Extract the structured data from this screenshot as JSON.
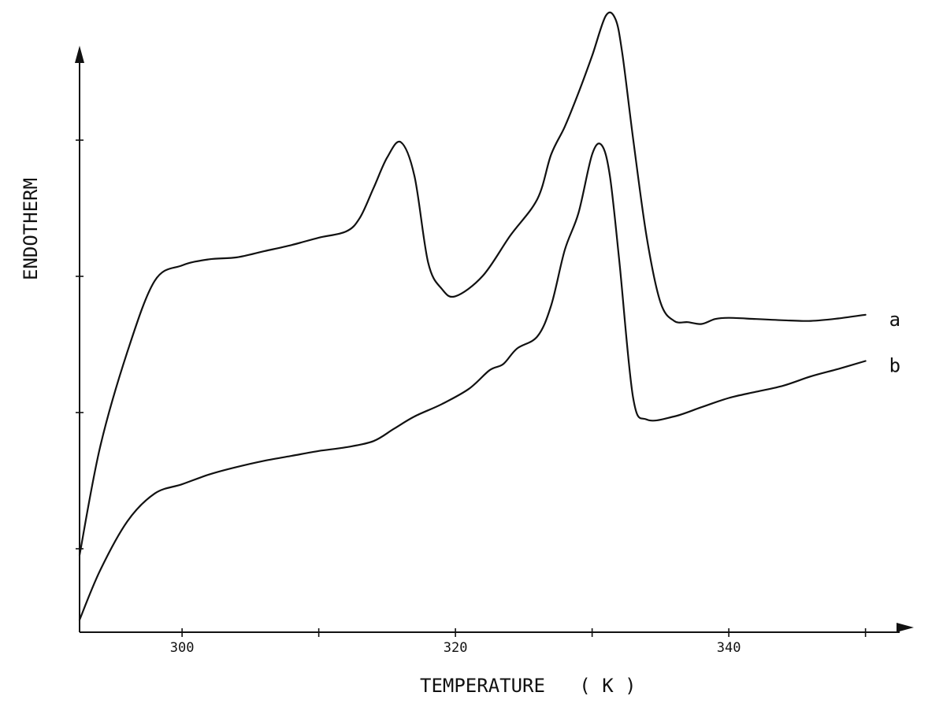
{
  "chart_data": {
    "type": "line",
    "title": "",
    "xlabel": "TEMPERATURE   ( K )",
    "ylabel": "ENDOTHERM",
    "xlim": [
      292.5,
      352.5
    ],
    "ylim": [
      0,
      1
    ],
    "grid": false,
    "y_ticks_labeled": false,
    "x_ticks": [
      300,
      310,
      320,
      330,
      340,
      350
    ],
    "x_tick_labels": [
      "300",
      "",
      "320",
      "",
      "340",
      ""
    ],
    "series": [
      {
        "name": "a",
        "x": [
          292.5,
          294,
          296,
          298,
          300,
          302,
          304,
          306,
          308,
          310,
          312,
          313,
          314,
          315,
          316,
          317,
          318,
          319,
          320,
          322,
          324,
          326,
          327,
          328,
          329,
          330,
          331,
          331.7,
          332.2,
          333,
          334,
          335,
          336,
          337,
          338,
          339,
          340,
          342,
          344,
          346,
          348,
          350
        ],
        "y": [
          0.125,
          0.3,
          0.455,
          0.57,
          0.595,
          0.605,
          0.608,
          0.618,
          0.628,
          0.64,
          0.65,
          0.672,
          0.72,
          0.77,
          0.795,
          0.74,
          0.6,
          0.557,
          0.545,
          0.578,
          0.643,
          0.703,
          0.775,
          0.82,
          0.875,
          0.935,
          1.0,
          0.995,
          0.94,
          0.8,
          0.64,
          0.535,
          0.505,
          0.503,
          0.5,
          0.508,
          0.51,
          0.508,
          0.506,
          0.505,
          0.509,
          0.515
        ]
      },
      {
        "name": "b",
        "x": [
          292.5,
          294,
          296,
          298,
          300,
          302,
          304,
          306,
          308,
          310,
          312,
          314,
          315.5,
          317,
          319,
          321,
          322.5,
          323.5,
          324.5,
          326,
          327,
          328,
          329,
          330,
          330.7,
          331.3,
          332,
          333,
          334,
          336,
          338,
          340,
          342,
          344,
          346,
          348,
          350
        ],
        "y": [
          0.02,
          0.1,
          0.18,
          0.225,
          0.24,
          0.256,
          0.268,
          0.278,
          0.286,
          0.294,
          0.3,
          0.31,
          0.33,
          0.35,
          0.37,
          0.395,
          0.425,
          0.435,
          0.46,
          0.48,
          0.53,
          0.62,
          0.68,
          0.775,
          0.79,
          0.74,
          0.6,
          0.38,
          0.345,
          0.35,
          0.365,
          0.38,
          0.39,
          0.4,
          0.415,
          0.427,
          0.44
        ]
      }
    ]
  }
}
